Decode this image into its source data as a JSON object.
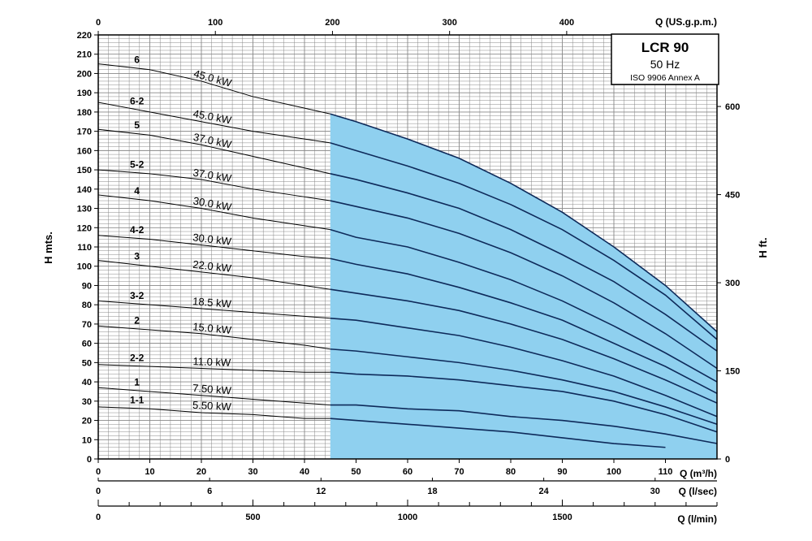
{
  "legend": {
    "title": "LCR 90",
    "freq": "50 Hz",
    "standard": "ISO 9906 Annex A"
  },
  "colors": {
    "operating_range": "#8fd0ef",
    "curve": "#000000",
    "curve_in_range": "#0e2a5a",
    "grid": "#888888"
  },
  "chart_data": {
    "type": "line",
    "title": "LCR 90",
    "ylabel": "H mts.",
    "ylabel_right": "H ft.",
    "xlabel": "Q (m³/h)",
    "xlabel_top": "Q (US.g.p.m.)",
    "xlabel_bottom_1": "Q (l/sec)",
    "xlabel_bottom_2": "Q (l/min)",
    "xlim": [
      0,
      120
    ],
    "ylim": [
      0,
      220
    ],
    "x_ticks": [
      0,
      10,
      20,
      30,
      40,
      50,
      60,
      70,
      80,
      90,
      100,
      110
    ],
    "y_ticks": [
      0,
      10,
      20,
      30,
      40,
      50,
      60,
      70,
      80,
      90,
      100,
      110,
      120,
      130,
      140,
      150,
      160,
      170,
      180,
      190,
      200,
      210,
      220
    ],
    "top_ticks": [
      0,
      100,
      200,
      300,
      400
    ],
    "right_ticks": [
      0,
      150,
      300,
      450,
      600
    ],
    "lsec_ticks": [
      0,
      6,
      12,
      18,
      24,
      30
    ],
    "lmin_ticks": [
      0,
      500,
      1000,
      1500
    ],
    "grid": true,
    "operating_range": {
      "x_start": 45,
      "x_end": 120
    },
    "x": [
      0,
      10,
      20,
      30,
      40,
      45,
      50,
      60,
      70,
      80,
      90,
      100,
      110,
      120
    ],
    "series": [
      {
        "name": "6",
        "power": "45.0 kW",
        "values": [
          205,
          202,
          196,
          188,
          182,
          179,
          175,
          166,
          156,
          143,
          128,
          110,
          90,
          66
        ]
      },
      {
        "name": "6-2",
        "power": "45.0 kW",
        "values": [
          185,
          180,
          175,
          170,
          166,
          164,
          160,
          152,
          143,
          132,
          119,
          103,
          85,
          62
        ]
      },
      {
        "name": "5",
        "power": "37.0 kW",
        "values": [
          171,
          168,
          163,
          157,
          151,
          148,
          145,
          138,
          130,
          119,
          106,
          92,
          75,
          56
        ]
      },
      {
        "name": "5-2",
        "power": "37.0 kW",
        "values": [
          150,
          148,
          145,
          140,
          136,
          134,
          131,
          125,
          117,
          107,
          95,
          81,
          65,
          47
        ]
      },
      {
        "name": "4",
        "power": "30.0 kW",
        "values": [
          137,
          134,
          130,
          125,
          121,
          119,
          115,
          110,
          102,
          93,
          82,
          69,
          55,
          40
        ]
      },
      {
        "name": "4-2",
        "power": "30.0 kW",
        "values": [
          116,
          114,
          111,
          108,
          105,
          104,
          101,
          96,
          89,
          81,
          72,
          60,
          48,
          34
        ]
      },
      {
        "name": "3",
        "power": "22.0 kW",
        "values": [
          103,
          100,
          97,
          94,
          90,
          88,
          86,
          82,
          77,
          70,
          62,
          52,
          41,
          29
        ]
      },
      {
        "name": "3-2",
        "power": "18.5 kW",
        "values": [
          82,
          80,
          78,
          76,
          74,
          73,
          72,
          68,
          64,
          58,
          51,
          43,
          33,
          22
        ]
      },
      {
        "name": "2",
        "power": "15.0 kW",
        "values": [
          69,
          67,
          65,
          62,
          59,
          57,
          56,
          53,
          50,
          46,
          41,
          35,
          27,
          18
        ]
      },
      {
        "name": "2-2",
        "power": "11.0 kW",
        "values": [
          49,
          48,
          47,
          46,
          45,
          45,
          44,
          43,
          41,
          38,
          35,
          30,
          23,
          14
        ]
      },
      {
        "name": "1",
        "power": "7.50 kW",
        "values": [
          37,
          35,
          33,
          31,
          29,
          28,
          28,
          26,
          25,
          22,
          20,
          17,
          13,
          8
        ]
      },
      {
        "name": "1-1",
        "power": "5.50 kW",
        "values": [
          27,
          26,
          24,
          23,
          21,
          21,
          20,
          18,
          16,
          14,
          11,
          8,
          6,
          null
        ]
      }
    ]
  }
}
